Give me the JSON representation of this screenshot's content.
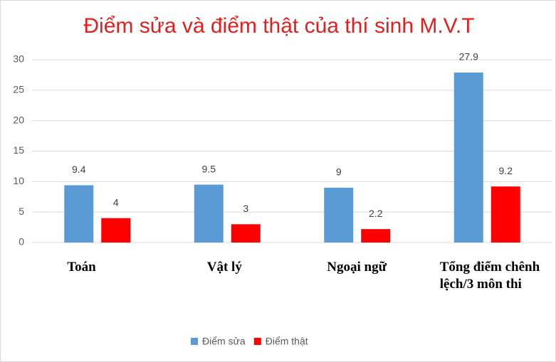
{
  "chart_data": {
    "type": "bar",
    "title": "Điểm sửa và điểm thật của thí sinh M.V.T",
    "categories": [
      "Toán",
      "Vật lý",
      "Ngoại ngữ",
      "Tổng điểm chênh lệch/3 môn thi"
    ],
    "series": [
      {
        "name": "Điểm sửa",
        "color": "#5b9bd5",
        "values": [
          9.4,
          9.5,
          9,
          27.9
        ]
      },
      {
        "name": "Điểm thật",
        "color": "#ff0000",
        "values": [
          4,
          3,
          2.2,
          9.2
        ]
      }
    ],
    "ylim": [
      0,
      30
    ],
    "yticks": [
      0,
      5,
      10,
      15,
      20,
      25,
      30
    ],
    "grid": true,
    "legend": "bottom"
  }
}
